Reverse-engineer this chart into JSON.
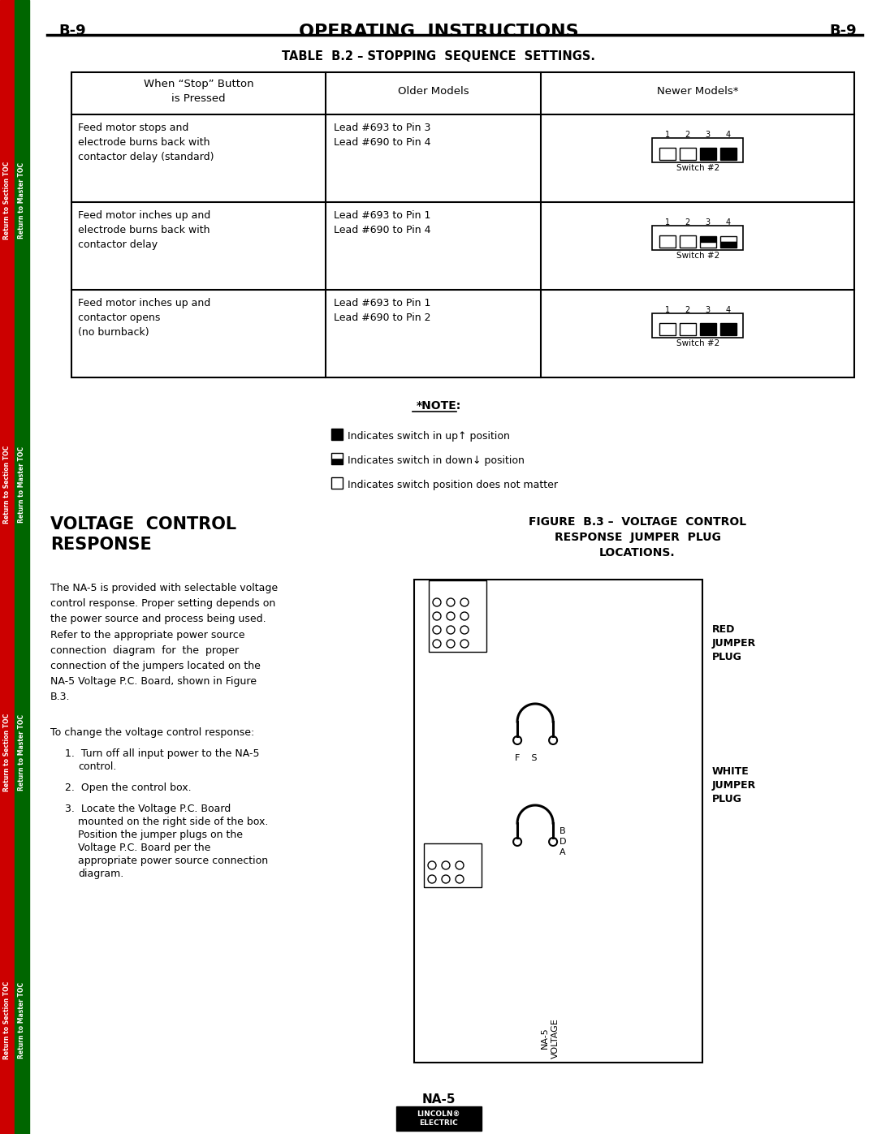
{
  "page_header_left": "B-9",
  "page_header_center": "OPERATING  INSTRUCTIONS",
  "page_header_right": "B-9",
  "table_title": "TABLE  B.2 – STOPPING  SEQUENCE  SETTINGS.",
  "table_col_headers": [
    "When “Stop” Button\nis Pressed",
    "Older Models",
    "Newer Models*"
  ],
  "table_rows": [
    {
      "col1": "Feed motor stops and\nelectrode burns back with\ncontactor delay (standard)",
      "col2": "Lead #693 to Pin 3\nLead #690 to Pin 4"
    },
    {
      "col1": "Feed motor inches up and\nelectrode burns back with\ncontactor delay",
      "col2": "Lead #693 to Pin 1\nLead #690 to Pin 4"
    },
    {
      "col1": "Feed motor inches up and\ncontactor opens\n(no burnback)",
      "col2": "Lead #693 to Pin 1\nLead #690 to Pin 2"
    }
  ],
  "note_title": "*NOTE:",
  "note_items": [
    "Indicates switch in up↑ position",
    "Indicates switch in down↓ position",
    "Indicates switch position does not matter"
  ],
  "voltage_control_heading": "VOLTAGE  CONTROL\nRESPONSE",
  "figure_heading": "FIGURE  B.3 –  VOLTAGE  CONTROL\nRESPONSE  JUMPER  PLUG\nLOCATIONS.",
  "body_text": "The NA-5 is provided with selectable voltage\ncontrol response. Proper setting depends on\nthe power source and process being used.\nRefer to the appropriate power source\nconnection  diagram  for  the  proper\nconnection of the jumpers located on the\nNA-5 Voltage P.C. Board, shown in Figure\nB.3.",
  "change_text": "To change the voltage control response:",
  "steps": [
    "Turn off all input power to the NA-5\n     control.",
    "Open the control box.",
    "Locate the Voltage P.C. Board\n     mounted on the right side of the box.\n     Position the jumper plugs on the\n     Voltage P.C. Board per the\n     appropriate power source connection\n     diagram."
  ],
  "red_jumper_label": "RED\nJUMPER\nPLUG",
  "white_jumper_label": "WHITE\nJUMPER\nPLUG",
  "fs_label": "F    S",
  "footer_text": "NA-5",
  "bg_color": "#ffffff",
  "sidebar_red_color": "#cc0000",
  "sidebar_green_color": "#006600"
}
